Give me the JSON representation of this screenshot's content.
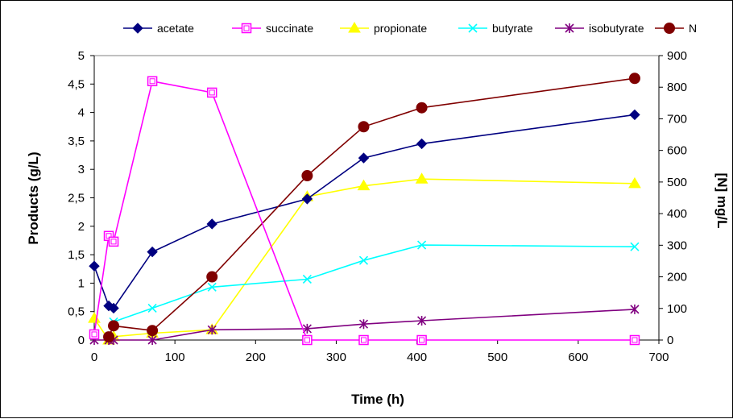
{
  "chart_data": {
    "type": "line",
    "title": "",
    "xlabel": "Time (h)",
    "ylabel": "Products (g/L)",
    "y2label": "[N] mg/L",
    "xlim": [
      0,
      700
    ],
    "ylim": [
      0,
      5
    ],
    "y2lim": [
      0,
      900
    ],
    "x_ticks": [
      "0",
      "100",
      "200",
      "300",
      "400",
      "500",
      "600",
      "700"
    ],
    "y_ticks": [
      "0",
      "0,5",
      "1",
      "1,5",
      "2",
      "2,5",
      "3",
      "3,5",
      "4",
      "4,5",
      "5"
    ],
    "y2_ticks": [
      "0",
      "100",
      "200",
      "300",
      "400",
      "500",
      "600",
      "700",
      "800",
      "900"
    ],
    "grid": false,
    "legend_position": "top",
    "series": [
      {
        "name": "acetate",
        "axis": "left",
        "color": "#000080",
        "marker": "diamond",
        "x": [
          0,
          18,
          24,
          72,
          146,
          264,
          334,
          406,
          670
        ],
        "y": [
          1.3,
          0.6,
          0.56,
          1.55,
          2.04,
          2.48,
          3.2,
          3.45,
          3.96
        ]
      },
      {
        "name": "succinate",
        "axis": "left",
        "color": "#FF00FF",
        "marker": "square",
        "x": [
          0,
          18,
          24,
          72,
          146,
          264,
          334,
          406,
          670
        ],
        "y": [
          0.1,
          1.83,
          1.73,
          4.55,
          4.35,
          0,
          0,
          0,
          0
        ]
      },
      {
        "name": "propionate",
        "axis": "left",
        "color": "#FFFF00",
        "marker": "triangle",
        "x": [
          0,
          18,
          24,
          72,
          146,
          264,
          334,
          406,
          670
        ],
        "y": [
          0.38,
          0.0,
          0.06,
          0.12,
          0.18,
          2.52,
          2.71,
          2.83,
          2.75
        ]
      },
      {
        "name": "butyrate",
        "axis": "left",
        "color": "#00FFFF",
        "marker": "x",
        "x": [
          24,
          72,
          146,
          264,
          334,
          406,
          670
        ],
        "y": [
          0.32,
          0.56,
          0.93,
          1.07,
          1.4,
          1.67,
          1.64
        ]
      },
      {
        "name": "isobutyrate",
        "axis": "left",
        "color": "#800080",
        "marker": "star",
        "x": [
          0,
          18,
          24,
          72,
          146,
          264,
          334,
          406,
          670
        ],
        "y": [
          0,
          0,
          0,
          0,
          0.18,
          0.2,
          0.28,
          0.34,
          0.54
        ]
      },
      {
        "name": "N",
        "axis": "right",
        "color": "#800000",
        "marker": "circle",
        "x": [
          18,
          24,
          72,
          146,
          264,
          334,
          406,
          670
        ],
        "y": [
          10,
          45,
          30,
          200,
          520,
          675,
          735,
          828
        ]
      }
    ]
  }
}
